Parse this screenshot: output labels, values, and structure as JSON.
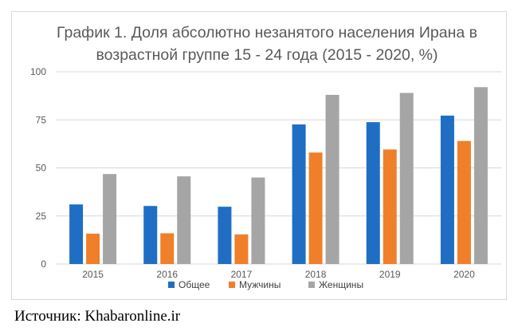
{
  "chart_data": {
    "type": "bar",
    "title_lines": [
      "График 1. Доля абсолютно незанятого населения Ирана в",
      "возрастной группе 15 - 24 года (2015 - 2020, %)"
    ],
    "categories": [
      "2015",
      "2016",
      "2017",
      "2018",
      "2019",
      "2020"
    ],
    "series": [
      {
        "name": "Общее",
        "color": "#1f6ec4",
        "values": [
          31,
          30.2,
          29.8,
          72.6,
          73.8,
          77.2
        ]
      },
      {
        "name": "Мужчины",
        "color": "#f07f2a",
        "values": [
          15.8,
          16.0,
          15.4,
          58.0,
          59.6,
          64.0
        ]
      },
      {
        "name": "Женщины",
        "color": "#a5a5a5",
        "values": [
          46.8,
          45.6,
          45.0,
          88.0,
          89.0,
          92.0
        ]
      }
    ],
    "ylim": [
      0,
      100
    ],
    "yticks": [
      0,
      25,
      50,
      75,
      100
    ],
    "grid": true,
    "legend_position": "bottom"
  },
  "source": "Источник: Khabaronline.ir"
}
